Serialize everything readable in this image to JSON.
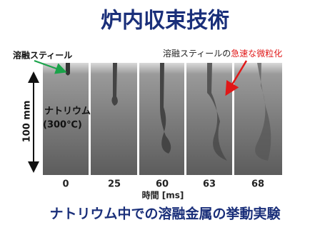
{
  "title": "炉内収束技術",
  "labels": {
    "molten_steel": "溶融スティール",
    "atomization_prefix": "溶融スティールの",
    "atomization_emphasis": "急速な微粒化",
    "scale": "100 mm",
    "sodium": "ナトリウム",
    "sodium_temp": "(300℃)"
  },
  "frames": {
    "times": [
      "0",
      "25",
      "60",
      "63",
      "68"
    ],
    "axis_label": "時間 [ms]"
  },
  "caption": "ナトリウム中での溶融金属の挙動実験"
}
